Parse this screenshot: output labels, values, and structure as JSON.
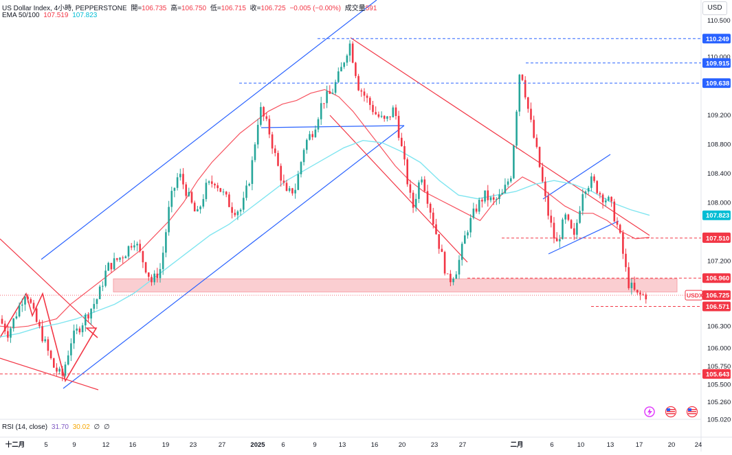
{
  "header": {
    "symbol": "US Dollar Index, 4小時, PEPPERSTONE",
    "open_label": "開=",
    "open": "106.735",
    "high_label": "高=",
    "high": "106.750",
    "low_label": "低=",
    "low": "106.715",
    "close_label": "收=",
    "close": "106.725",
    "change": "−0.005 (−0.00%)",
    "volume_label": "成交量",
    "volume": "591",
    "ema_label": "EMA 50/100",
    "ema50": "107.519",
    "ema100": "107.823"
  },
  "currency_button": "USD",
  "rsi": {
    "label": "RSI (14, close)",
    "value1": "31.70",
    "value2": "30.02",
    "extra1": "∅",
    "extra2": "∅"
  },
  "colors": {
    "up": "#26a69a",
    "down": "#f23645",
    "ema50": "#f7525f",
    "ema100": "#7fe5f0",
    "channel": "#2962ff",
    "downchannel": "#f23645",
    "zone": "#f9c5c9",
    "hline_blue": "#2962ff",
    "hline_red": "#f23645"
  },
  "chart_data": {
    "type": "candlestick",
    "y_range": [
      105.02,
      110.78
    ],
    "y_ticks": [
      "110.500",
      "110.249",
      "110.000",
      "109.915",
      "109.638",
      "109.200",
      "108.800",
      "108.400",
      "108.000",
      "107.823",
      "107.519",
      "107.510",
      "107.200",
      "106.960",
      "106.725",
      "106.571",
      "106.300",
      "106.000",
      "105.750",
      "105.643",
      "105.500",
      "105.260",
      "105.020"
    ],
    "x_labels": [
      "十二月",
      "5",
      "9",
      "12",
      "16",
      "19",
      "23",
      "27",
      "2025",
      "6",
      "9",
      "13",
      "16",
      "20",
      "23",
      "27",
      "二月",
      "6",
      "10",
      "13",
      "17",
      "20",
      "24"
    ],
    "price_labels": [
      {
        "value": 110.249,
        "text": "110.249",
        "color": "#2962ff"
      },
      {
        "value": 109.915,
        "text": "109.915",
        "color": "#2962ff"
      },
      {
        "value": 109.638,
        "text": "109.638",
        "color": "#2962ff"
      },
      {
        "value": 107.823,
        "text": "107.823",
        "color": "#00bcd4"
      },
      {
        "value": 107.519,
        "text": "107.519",
        "color": "#f23645"
      },
      {
        "value": 107.51,
        "text": "107.510",
        "color": "#f23645"
      },
      {
        "value": 106.96,
        "text": "106.960",
        "color": "#f23645"
      },
      {
        "value": 106.725,
        "text": "106.725",
        "color": "#f23645"
      },
      {
        "value": 106.571,
        "text": "106.571",
        "color": "#f23645"
      },
      {
        "value": 105.643,
        "text": "105.643",
        "color": "#f23645"
      }
    ],
    "symbol_tag": "USDX",
    "support_zone": [
      106.77,
      106.95
    ],
    "close_path": [
      106.4,
      106.2,
      106.5,
      106.8,
      106.4,
      106.1,
      105.75,
      105.6,
      106.1,
      106.3,
      106.5,
      106.7,
      107.1,
      107.2,
      107.3,
      107.5,
      107.2,
      106.9,
      107.1,
      108.0,
      108.4,
      108.1,
      107.8,
      108.2,
      108.3,
      108.1,
      107.9,
      107.9,
      108.4,
      109.3,
      109.0,
      108.5,
      108.1,
      108.2,
      108.8,
      109.0,
      109.4,
      109.5,
      109.8,
      110.2,
      109.6,
      109.4,
      109.2,
      109.1,
      109.3,
      108.6,
      107.9,
      108.4,
      107.9,
      107.4,
      106.9,
      107.1,
      107.6,
      107.9,
      108.1,
      108.0,
      108.1,
      108.4,
      109.9,
      109.2,
      108.6,
      107.9,
      107.4,
      107.8,
      107.5,
      108.2,
      108.3,
      108.1,
      108.0,
      107.6,
      106.9,
      106.72,
      106.725
    ],
    "ema50_path": [
      106.3,
      106.28,
      106.3,
      106.35,
      106.4,
      106.6,
      106.75,
      106.9,
      107.05,
      107.2,
      107.35,
      107.55,
      107.75,
      108.0,
      108.3,
      108.55,
      108.75,
      108.95,
      109.1,
      109.25,
      109.35,
      109.4,
      109.5,
      109.55,
      109.45,
      109.25,
      109.0,
      108.75,
      108.5,
      108.3,
      108.15,
      108.05,
      107.95,
      107.85,
      107.75,
      108.0,
      108.2,
      108.35,
      108.25,
      108.1,
      107.95,
      107.85,
      107.85,
      107.75,
      107.6,
      107.5,
      107.519
    ],
    "ema100_path": [
      106.15,
      106.2,
      106.28,
      106.33,
      106.4,
      106.5,
      106.6,
      106.75,
      106.95,
      107.15,
      107.35,
      107.55,
      107.7,
      107.9,
      108.1,
      108.3,
      108.45,
      108.6,
      108.75,
      108.85,
      108.82,
      108.7,
      108.55,
      108.3,
      108.1,
      108.05,
      108.1,
      108.15,
      108.25,
      108.3,
      108.25,
      108.15,
      108.0,
      107.9,
      107.823
    ]
  }
}
